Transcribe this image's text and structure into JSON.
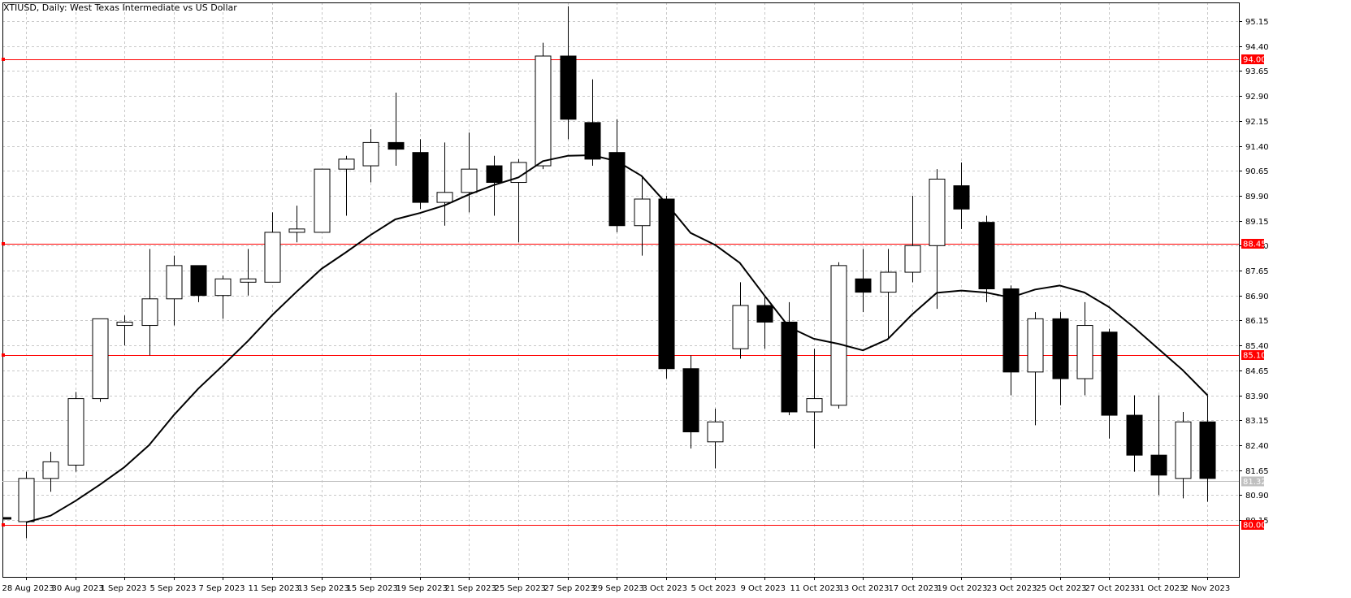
{
  "chart_data": {
    "type": "candlestick",
    "title": "XTIUSD, Daily:  West Texas Intermediate vs US Dollar",
    "ylim": [
      79.4,
      95.6
    ],
    "y_ticks": [
      "95.15",
      "94.40",
      "93.65",
      "92.90",
      "92.15",
      "91.40",
      "90.65",
      "89.90",
      "89.15",
      "88.40",
      "87.65",
      "86.90",
      "86.15",
      "85.40",
      "84.65",
      "83.90",
      "83.15",
      "82.40",
      "81.65",
      "80.90",
      "80.15"
    ],
    "x_ticks": [
      {
        "index": 0,
        "label": "28 Aug 2023"
      },
      {
        "index": 2,
        "label": "30 Aug 2023"
      },
      {
        "index": 4,
        "label": "1 Sep 2023"
      },
      {
        "index": 6,
        "label": "5 Sep 2023"
      },
      {
        "index": 8,
        "label": "7 Sep 2023"
      },
      {
        "index": 10,
        "label": "11 Sep 2023"
      },
      {
        "index": 12,
        "label": "13 Sep 2023"
      },
      {
        "index": 14,
        "label": "15 Sep 2023"
      },
      {
        "index": 16,
        "label": "19 Sep 2023"
      },
      {
        "index": 18,
        "label": "21 Sep 2023"
      },
      {
        "index": 20,
        "label": "25 Sep 2023"
      },
      {
        "index": 22,
        "label": "27 Sep 2023"
      },
      {
        "index": 24,
        "label": "29 Sep 2023"
      },
      {
        "index": 26,
        "label": "3 Oct 2023"
      },
      {
        "index": 28,
        "label": "5 Oct 2023"
      },
      {
        "index": 30,
        "label": "9 Oct 2023"
      },
      {
        "index": 32,
        "label": "11 Oct 2023"
      },
      {
        "index": 34,
        "label": "13 Oct 2023"
      },
      {
        "index": 36,
        "label": "17 Oct 2023"
      },
      {
        "index": 38,
        "label": "19 Oct 2023"
      },
      {
        "index": 40,
        "label": "23 Oct 2023"
      },
      {
        "index": 42,
        "label": "25 Oct 2023"
      },
      {
        "index": 44,
        "label": "27 Oct 2023"
      },
      {
        "index": 46,
        "label": "31 Oct 2023"
      },
      {
        "index": 48,
        "label": "2 Nov 2023"
      }
    ],
    "candles": [
      {
        "o": 80.1,
        "h": 81.6,
        "l": 79.6,
        "c": 81.4
      },
      {
        "o": 81.4,
        "h": 82.2,
        "l": 81.0,
        "c": 81.9
      },
      {
        "o": 81.8,
        "h": 84.0,
        "l": 81.6,
        "c": 83.8
      },
      {
        "o": 83.8,
        "h": 86.2,
        "l": 83.7,
        "c": 86.2
      },
      {
        "o": 86.0,
        "h": 86.3,
        "l": 85.4,
        "c": 86.1
      },
      {
        "o": 86.0,
        "h": 88.3,
        "l": 85.1,
        "c": 86.8
      },
      {
        "o": 86.8,
        "h": 88.1,
        "l": 86.0,
        "c": 87.8
      },
      {
        "o": 87.8,
        "h": 87.8,
        "l": 86.7,
        "c": 86.9
      },
      {
        "o": 86.9,
        "h": 87.5,
        "l": 86.2,
        "c": 87.4
      },
      {
        "o": 87.3,
        "h": 88.3,
        "l": 86.9,
        "c": 87.4
      },
      {
        "o": 87.3,
        "h": 89.4,
        "l": 87.3,
        "c": 88.8
      },
      {
        "o": 88.8,
        "h": 89.6,
        "l": 88.5,
        "c": 88.9
      },
      {
        "o": 88.8,
        "h": 90.7,
        "l": 88.8,
        "c": 90.7
      },
      {
        "o": 90.7,
        "h": 91.1,
        "l": 89.3,
        "c": 91.0
      },
      {
        "o": 90.8,
        "h": 91.9,
        "l": 90.3,
        "c": 91.5
      },
      {
        "o": 91.5,
        "h": 93.0,
        "l": 90.8,
        "c": 91.3
      },
      {
        "o": 91.2,
        "h": 91.6,
        "l": 89.5,
        "c": 89.7
      },
      {
        "o": 89.7,
        "h": 91.5,
        "l": 89.0,
        "c": 90.0
      },
      {
        "o": 90.0,
        "h": 91.8,
        "l": 89.4,
        "c": 90.7
      },
      {
        "o": 90.8,
        "h": 91.1,
        "l": 89.3,
        "c": 90.3
      },
      {
        "o": 90.3,
        "h": 91.0,
        "l": 88.5,
        "c": 90.9
      },
      {
        "o": 90.8,
        "h": 94.5,
        "l": 90.7,
        "c": 94.1
      },
      {
        "o": 94.1,
        "h": 95.6,
        "l": 91.6,
        "c": 92.2
      },
      {
        "o": 92.1,
        "h": 93.4,
        "l": 90.8,
        "c": 91.0
      },
      {
        "o": 91.2,
        "h": 92.2,
        "l": 88.8,
        "c": 89.0
      },
      {
        "o": 89.0,
        "h": 90.5,
        "l": 88.1,
        "c": 89.8
      },
      {
        "o": 89.8,
        "h": 89.9,
        "l": 84.4,
        "c": 84.7
      },
      {
        "o": 84.7,
        "h": 85.1,
        "l": 82.3,
        "c": 82.8
      },
      {
        "o": 82.5,
        "h": 83.5,
        "l": 81.7,
        "c": 83.1
      },
      {
        "o": 85.3,
        "h": 87.3,
        "l": 85.0,
        "c": 86.6
      },
      {
        "o": 86.6,
        "h": 86.9,
        "l": 85.3,
        "c": 86.1
      },
      {
        "o": 86.1,
        "h": 86.7,
        "l": 83.3,
        "c": 83.4
      },
      {
        "o": 83.4,
        "h": 85.3,
        "l": 82.3,
        "c": 83.8
      },
      {
        "o": 83.6,
        "h": 87.9,
        "l": 83.5,
        "c": 87.8
      },
      {
        "o": 87.4,
        "h": 88.3,
        "l": 86.4,
        "c": 87.0
      },
      {
        "o": 87.0,
        "h": 88.3,
        "l": 85.6,
        "c": 87.6
      },
      {
        "o": 87.6,
        "h": 89.9,
        "l": 87.3,
        "c": 88.4
      },
      {
        "o": 88.4,
        "h": 90.7,
        "l": 86.5,
        "c": 90.4
      },
      {
        "o": 90.2,
        "h": 90.9,
        "l": 88.9,
        "c": 89.5
      },
      {
        "o": 89.1,
        "h": 89.3,
        "l": 86.7,
        "c": 87.1
      },
      {
        "o": 87.1,
        "h": 87.2,
        "l": 83.9,
        "c": 84.6
      },
      {
        "o": 84.6,
        "h": 86.4,
        "l": 83.0,
        "c": 86.2
      },
      {
        "o": 86.2,
        "h": 86.4,
        "l": 83.6,
        "c": 84.4
      },
      {
        "o": 84.4,
        "h": 86.7,
        "l": 83.9,
        "c": 86.0
      },
      {
        "o": 85.8,
        "h": 85.9,
        "l": 82.6,
        "c": 83.3
      },
      {
        "o": 83.3,
        "h": 83.9,
        "l": 81.6,
        "c": 82.1
      },
      {
        "o": 82.1,
        "h": 83.9,
        "l": 80.9,
        "c": 81.5
      },
      {
        "o": 81.4,
        "h": 83.4,
        "l": 80.8,
        "c": 83.1
      },
      {
        "o": 83.1,
        "h": 83.9,
        "l": 80.7,
        "c": 81.4
      }
    ],
    "moving_average": [
      80.08,
      80.28,
      80.72,
      81.21,
      81.74,
      82.4,
      83.3,
      84.1,
      84.8,
      85.52,
      86.31,
      87.02,
      87.7,
      88.2,
      88.72,
      89.19,
      89.38,
      89.61,
      89.94,
      90.22,
      90.45,
      90.94,
      91.1,
      91.12,
      90.94,
      90.5,
      89.68,
      88.78,
      88.42,
      87.88,
      86.9,
      85.95,
      85.6,
      85.45,
      85.25,
      85.58,
      86.33,
      86.98,
      87.05,
      86.99,
      86.84,
      87.08,
      87.2,
      86.99,
      86.55,
      85.95,
      85.3,
      84.65,
      83.9
    ],
    "horizontal_levels": [
      {
        "value": 94.0,
        "label": "94.00",
        "color": "#ff0000"
      },
      {
        "value": 88.45,
        "label": "88.45",
        "color": "#ff0000"
      },
      {
        "value": 85.1,
        "label": "85.10",
        "color": "#ff0000"
      },
      {
        "value": 80.0,
        "label": "80.00",
        "color": "#ff0000"
      }
    ],
    "current_price": {
      "value": 81.32,
      "label": "81.32"
    },
    "colors": {
      "bull_body": "#ffffff",
      "bear_body": "#000000",
      "candle_outline": "#000000",
      "grid": "#c8c8c8",
      "level_line": "#ff0000",
      "ma_line": "#000000",
      "background": "#ffffff"
    },
    "grid": true
  }
}
